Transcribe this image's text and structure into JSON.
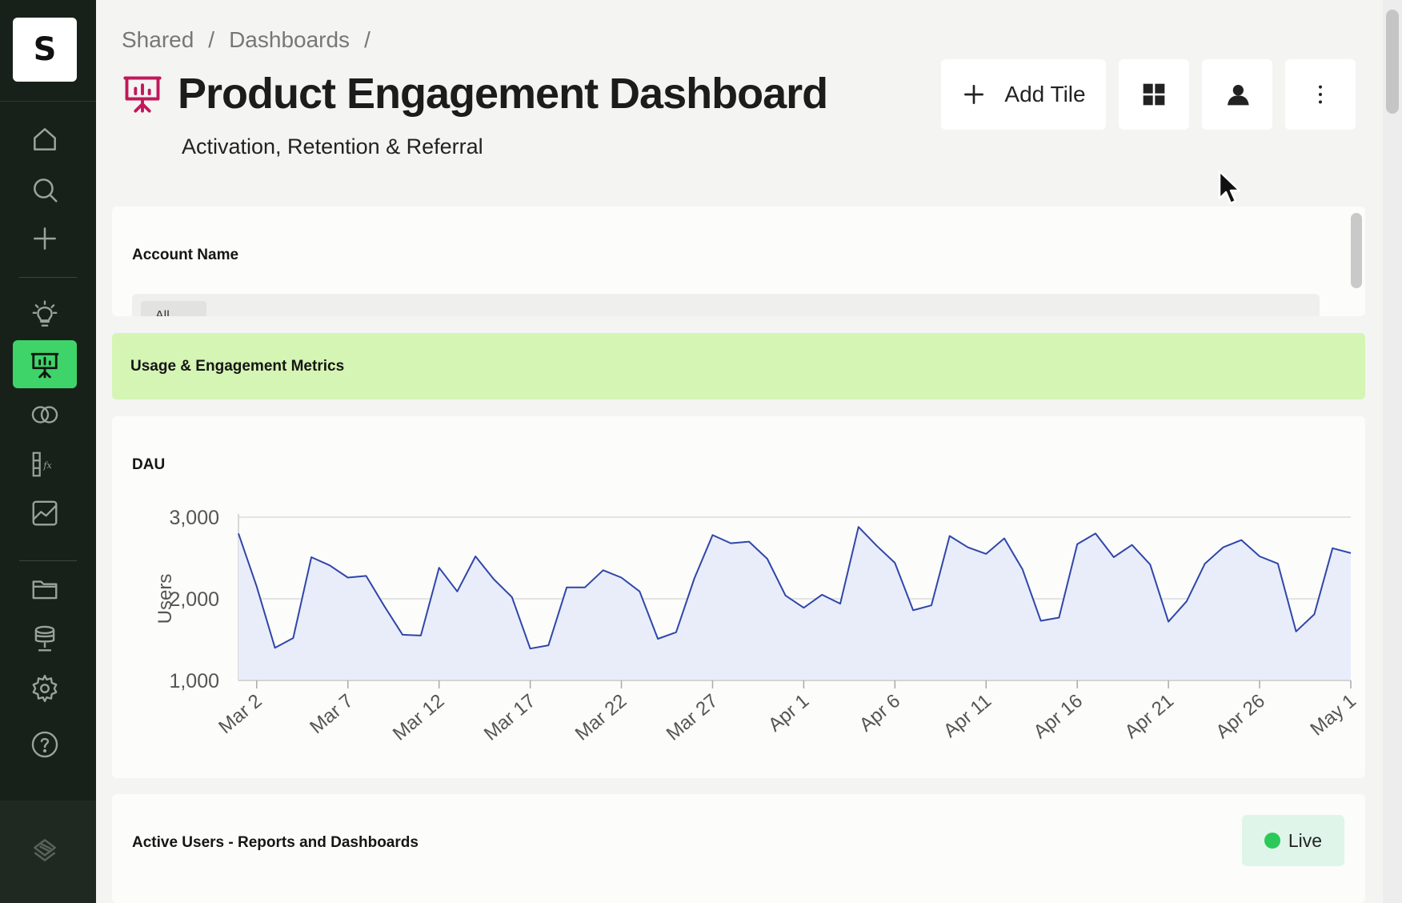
{
  "app": {
    "logo_letter": "S"
  },
  "sidebar": {
    "items": [
      {
        "name": "home",
        "icon": "home-icon"
      },
      {
        "name": "search",
        "icon": "search-icon"
      },
      {
        "name": "new",
        "icon": "plus-icon"
      },
      {
        "name": "insights",
        "icon": "lightbulb-icon"
      },
      {
        "name": "dashboards",
        "icon": "presentation-icon",
        "active": true
      },
      {
        "name": "overlap",
        "icon": "circles-icon"
      },
      {
        "name": "formulas",
        "icon": "formula-icon"
      },
      {
        "name": "charts",
        "icon": "chart-icon"
      },
      {
        "name": "folders",
        "icon": "folder-icon"
      },
      {
        "name": "data",
        "icon": "database-icon"
      },
      {
        "name": "settings",
        "icon": "gear-icon"
      },
      {
        "name": "help",
        "icon": "help-icon"
      }
    ],
    "active_color": "#3ed46a"
  },
  "breadcrumb": {
    "items": [
      "Shared",
      "Dashboards"
    ],
    "separator": "/"
  },
  "header": {
    "title": "Product Engagement Dashboard",
    "subtitle": "Activation, Retention & Referral",
    "icon_color": "#c2185b",
    "add_tile_label": "Add Tile"
  },
  "filter": {
    "label": "Account Name",
    "chip": "All"
  },
  "section": {
    "label": "Usage & Engagement Metrics",
    "color": "#d4f5b4"
  },
  "dau_card": {
    "title": "DAU"
  },
  "active_card": {
    "title": "Active Users - Reports and Dashboards",
    "status": "Live"
  },
  "chart_data": {
    "type": "area",
    "title": "DAU",
    "xlabel": "",
    "ylabel": "Users",
    "ylim": [
      1000,
      3000
    ],
    "yticks": [
      "1,000",
      "2,000",
      "3,000"
    ],
    "xticks": [
      "Mar 2",
      "Mar 7",
      "Mar 12",
      "Mar 17",
      "Mar 22",
      "Mar 27",
      "Apr 1",
      "Apr 6",
      "Apr 11",
      "Apr 16",
      "Apr 21",
      "Apr 26",
      "May 1"
    ],
    "x_start": "Mar 2",
    "x_end": "May 1",
    "grid": true,
    "line_color": "#2f46a8",
    "fill_color": "#e9edfa",
    "series": [
      {
        "values": [
          2800,
          2150,
          1400,
          1520,
          2510,
          2410,
          2260,
          2280,
          1910,
          1560,
          1550,
          2380,
          2090,
          2520,
          2240,
          2020,
          1390,
          1430,
          2140,
          2140,
          2350,
          2260,
          2090,
          1510,
          1590,
          2250,
          2780,
          2680,
          2700,
          2490,
          2040,
          1890,
          2050,
          1940,
          2880,
          2650,
          2440,
          1860,
          1920,
          2770,
          2630,
          2550,
          2740,
          2360,
          1730,
          1770,
          2670,
          2800,
          2510,
          2660,
          2420,
          1720,
          1970,
          2430,
          2630,
          2720,
          2520,
          2430,
          1600,
          1810,
          2620,
          2560
        ]
      }
    ]
  }
}
